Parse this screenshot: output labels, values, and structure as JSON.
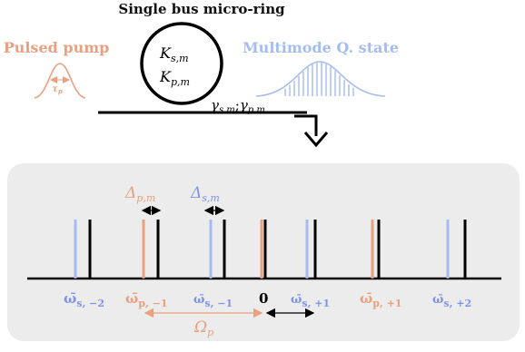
{
  "title": "Single bus micro-ring",
  "pump": {
    "label": "Pulsed pump",
    "tau_label": "τ",
    "tau_sub": "p",
    "color": "#e8a080"
  },
  "state": {
    "label": "Multimode Q. state",
    "color": "#a5bcf0"
  },
  "ring": {
    "k_s": "K",
    "k_s_sub": "s,m",
    "k_p": "K",
    "k_p_sub": "p,m"
  },
  "coupling": {
    "g1": "γ",
    "g1_sub": "s,m",
    "sep": ";",
    "g2": "γ",
    "g2_sub": "p,m"
  },
  "spectrum": {
    "delta_p": "Δ",
    "delta_p_sub": "p,m",
    "delta_s": "Δ",
    "delta_s_sub": "s,m",
    "omega_p": "Ω",
    "omega_p_sub": "p",
    "labels": [
      {
        "main": "ω̄",
        "sub": "s, −2",
        "color": "#7e93e8"
      },
      {
        "main": "ω̄",
        "sub": "p, −1",
        "color": "#e8a080"
      },
      {
        "main": "ω̄",
        "sub": "s, −1",
        "color": "#7e93e8"
      },
      {
        "main": "0",
        "sub": "",
        "color": "#000000"
      },
      {
        "main": "ω̄",
        "sub": "s, +1",
        "color": "#7e93e8"
      },
      {
        "main": "ω̄",
        "sub": "p, +1",
        "color": "#e8a080"
      },
      {
        "main": "ω̄",
        "sub": "s, +2",
        "color": "#7e93e8"
      }
    ],
    "panel_color": "#ececec",
    "blue": "#a5bcf0",
    "orange": "#e8a080"
  }
}
